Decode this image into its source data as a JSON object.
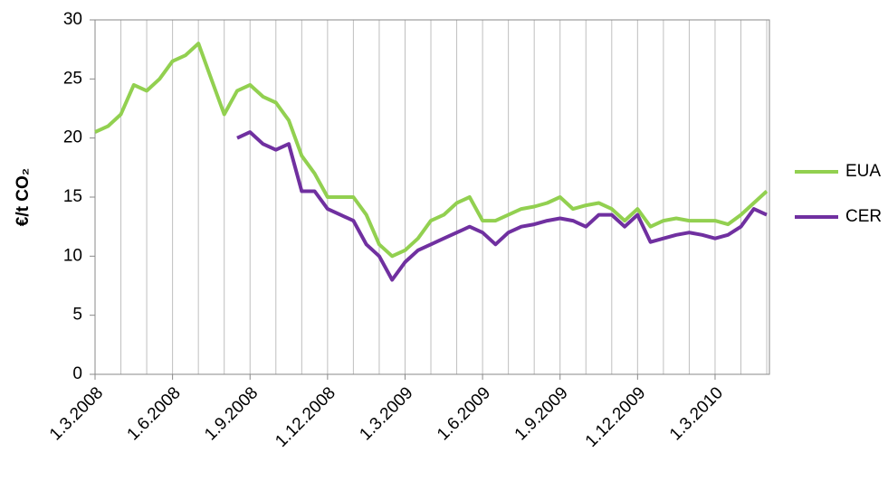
{
  "chart_data": {
    "type": "line",
    "y_label": "€/t CO₂",
    "categories": [
      "1.3.2008",
      null,
      null,
      null,
      null,
      null,
      "1.6.2008",
      null,
      null,
      null,
      null,
      null,
      "1.9.2008",
      null,
      null,
      null,
      null,
      null,
      "1.12.2008",
      null,
      null,
      null,
      null,
      null,
      "1.3.2009",
      null,
      null,
      null,
      null,
      null,
      "1.6.2009",
      null,
      null,
      null,
      null,
      null,
      "1.9.2009",
      null,
      null,
      null,
      null,
      null,
      "1.12.2009",
      null,
      null,
      null,
      null,
      null,
      "1.3.2010",
      null,
      null,
      null,
      null
    ],
    "series": [
      {
        "name": "EUA",
        "color": "#92d050",
        "values": [
          20.5,
          21,
          22,
          24.5,
          24,
          25,
          26.5,
          27,
          28,
          25,
          22,
          24,
          24.5,
          23.5,
          23,
          21.5,
          18.5,
          17,
          15,
          15,
          15,
          13.5,
          11,
          10,
          10.5,
          11.5,
          13,
          13.5,
          14.5,
          15,
          13,
          13,
          13.5,
          14,
          14.2,
          14.5,
          15,
          14,
          14.3,
          14.5,
          14,
          13,
          14,
          12.5,
          13,
          13.2,
          13,
          13,
          13,
          12.7,
          13.5,
          14.5,
          15.5
        ]
      },
      {
        "name": "CER",
        "color": "#7030a0",
        "values": [
          null,
          null,
          null,
          null,
          null,
          null,
          null,
          null,
          null,
          null,
          null,
          20,
          20.5,
          19.5,
          19,
          19.5,
          15.5,
          15.5,
          14,
          13.5,
          13,
          11,
          10,
          8,
          9.5,
          10.5,
          11,
          11.5,
          12,
          12.5,
          12,
          11,
          12,
          12.5,
          12.7,
          13,
          13.2,
          13,
          12.5,
          13.5,
          13.5,
          12.5,
          13.5,
          11.2,
          11.5,
          11.8,
          12,
          11.8,
          11.5,
          11.8,
          12.5,
          14,
          13.5
        ]
      }
    ],
    "ylim": [
      0,
      30
    ],
    "yticks": [
      0,
      5,
      10,
      15,
      20,
      25,
      30
    ],
    "grid": true,
    "legend": "right"
  }
}
